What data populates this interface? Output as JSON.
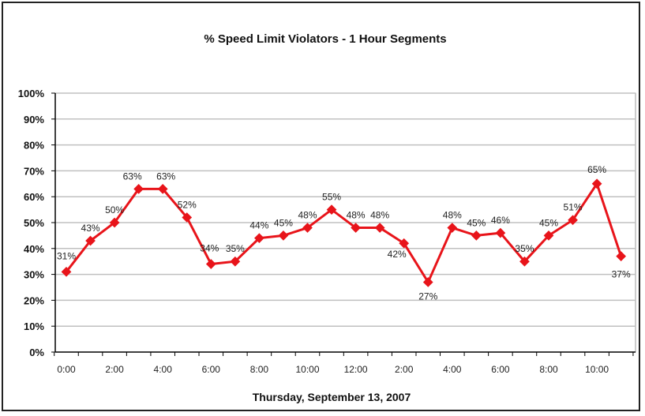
{
  "chart_data": {
    "type": "line",
    "title": "% Speed Limit Violators - 1 Hour Segments",
    "xlabel": "Thursday, September 13, 2007",
    "ylabel": "",
    "ylim": [
      0,
      100
    ],
    "yticks": [
      "0%",
      "10%",
      "20%",
      "30%",
      "40%",
      "50%",
      "60%",
      "70%",
      "80%",
      "90%",
      "100%"
    ],
    "xtick_labels": [
      "0:00",
      "2:00",
      "4:00",
      "6:00",
      "8:00",
      "10:00",
      "12:00",
      "2:00",
      "4:00",
      "6:00",
      "8:00",
      "10:00"
    ],
    "grid": true,
    "series": [
      {
        "name": "% Speed Limit Violators",
        "color": "#e8141a",
        "values": [
          31,
          43,
          50,
          63,
          63,
          52,
          34,
          35,
          44,
          45,
          48,
          55,
          48,
          48,
          42,
          27,
          48,
          45,
          46,
          35,
          45,
          51,
          65,
          37
        ],
        "labels": [
          "31%",
          "43%",
          "50%",
          "63%",
          "63%",
          "52%",
          "34%",
          "35%",
          "44%",
          "45%",
          "48%",
          "55%",
          "48%",
          "48%",
          "42%",
          "27%",
          "48%",
          "45%",
          "46%",
          "35%",
          "45%",
          "51%",
          "65%",
          "37%"
        ]
      }
    ]
  }
}
